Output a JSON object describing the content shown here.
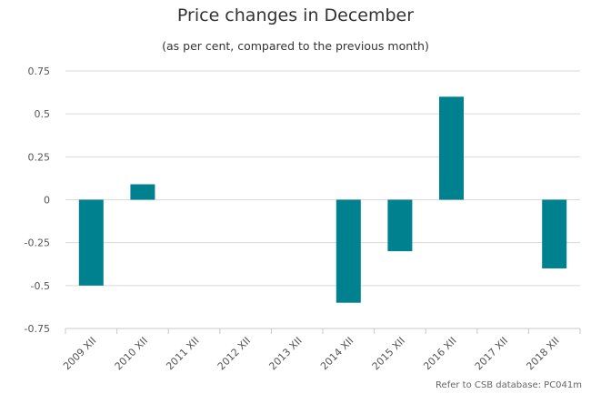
{
  "chart_data": {
    "type": "bar",
    "title": "Price changes in December",
    "subtitle": "(as per cent, compared to the previous month)",
    "categories": [
      "2009 XII",
      "2010 XII",
      "2011 XII",
      "2012 XII",
      "2013 XII",
      "2014 XII",
      "2015 XII",
      "2016 XII",
      "2017 XII",
      "2018 XII"
    ],
    "values": [
      -0.5,
      0.09,
      0,
      0,
      0,
      -0.6,
      -0.3,
      0.6,
      0,
      -0.4
    ],
    "yticks": [
      "0.75",
      "0.5",
      "0.25",
      "0",
      "-0.25",
      "-0.5",
      "-0.75"
    ],
    "ylim": [
      -0.75,
      0.75
    ],
    "xlabel": "",
    "ylabel": "",
    "grid": true,
    "bar_color": "#00818f",
    "grid_color": "#d9d9d9"
  },
  "credit": "Refer to CSB database: PC041m"
}
